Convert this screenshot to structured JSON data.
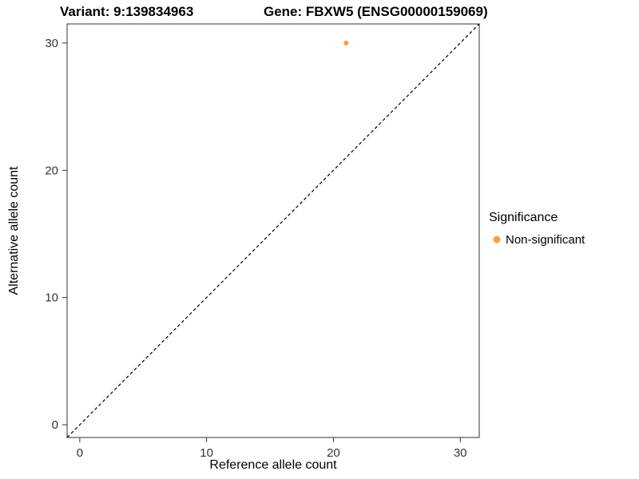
{
  "chart_data": {
    "type": "scatter",
    "title_left": "Variant: 9:139834963",
    "title_right": "Gene: FBXW5 (ENSG00000159069)",
    "xlabel": "Reference allele count",
    "ylabel": "Alternative allele count",
    "xlim": [
      -1,
      31.5
    ],
    "ylim": [
      -1,
      31.5
    ],
    "x_ticks": [
      0,
      10,
      20,
      30
    ],
    "y_ticks": [
      0,
      10,
      20,
      30
    ],
    "grid": false,
    "points": [
      {
        "x": 21,
        "y": 30,
        "series": "Non-significant"
      }
    ],
    "reference_line": {
      "type": "identity",
      "style": "dashed",
      "from": -1,
      "to": 31.5
    },
    "legend": {
      "title": "Significance",
      "position": "right",
      "entries": [
        {
          "label": "Non-significant",
          "color": "#F9A03F",
          "marker": "circle"
        }
      ]
    },
    "colors": {
      "point": "#F9A03F",
      "axis": "#333333",
      "panel_border": "#333333",
      "line": "#000000",
      "background": "#ffffff"
    }
  }
}
